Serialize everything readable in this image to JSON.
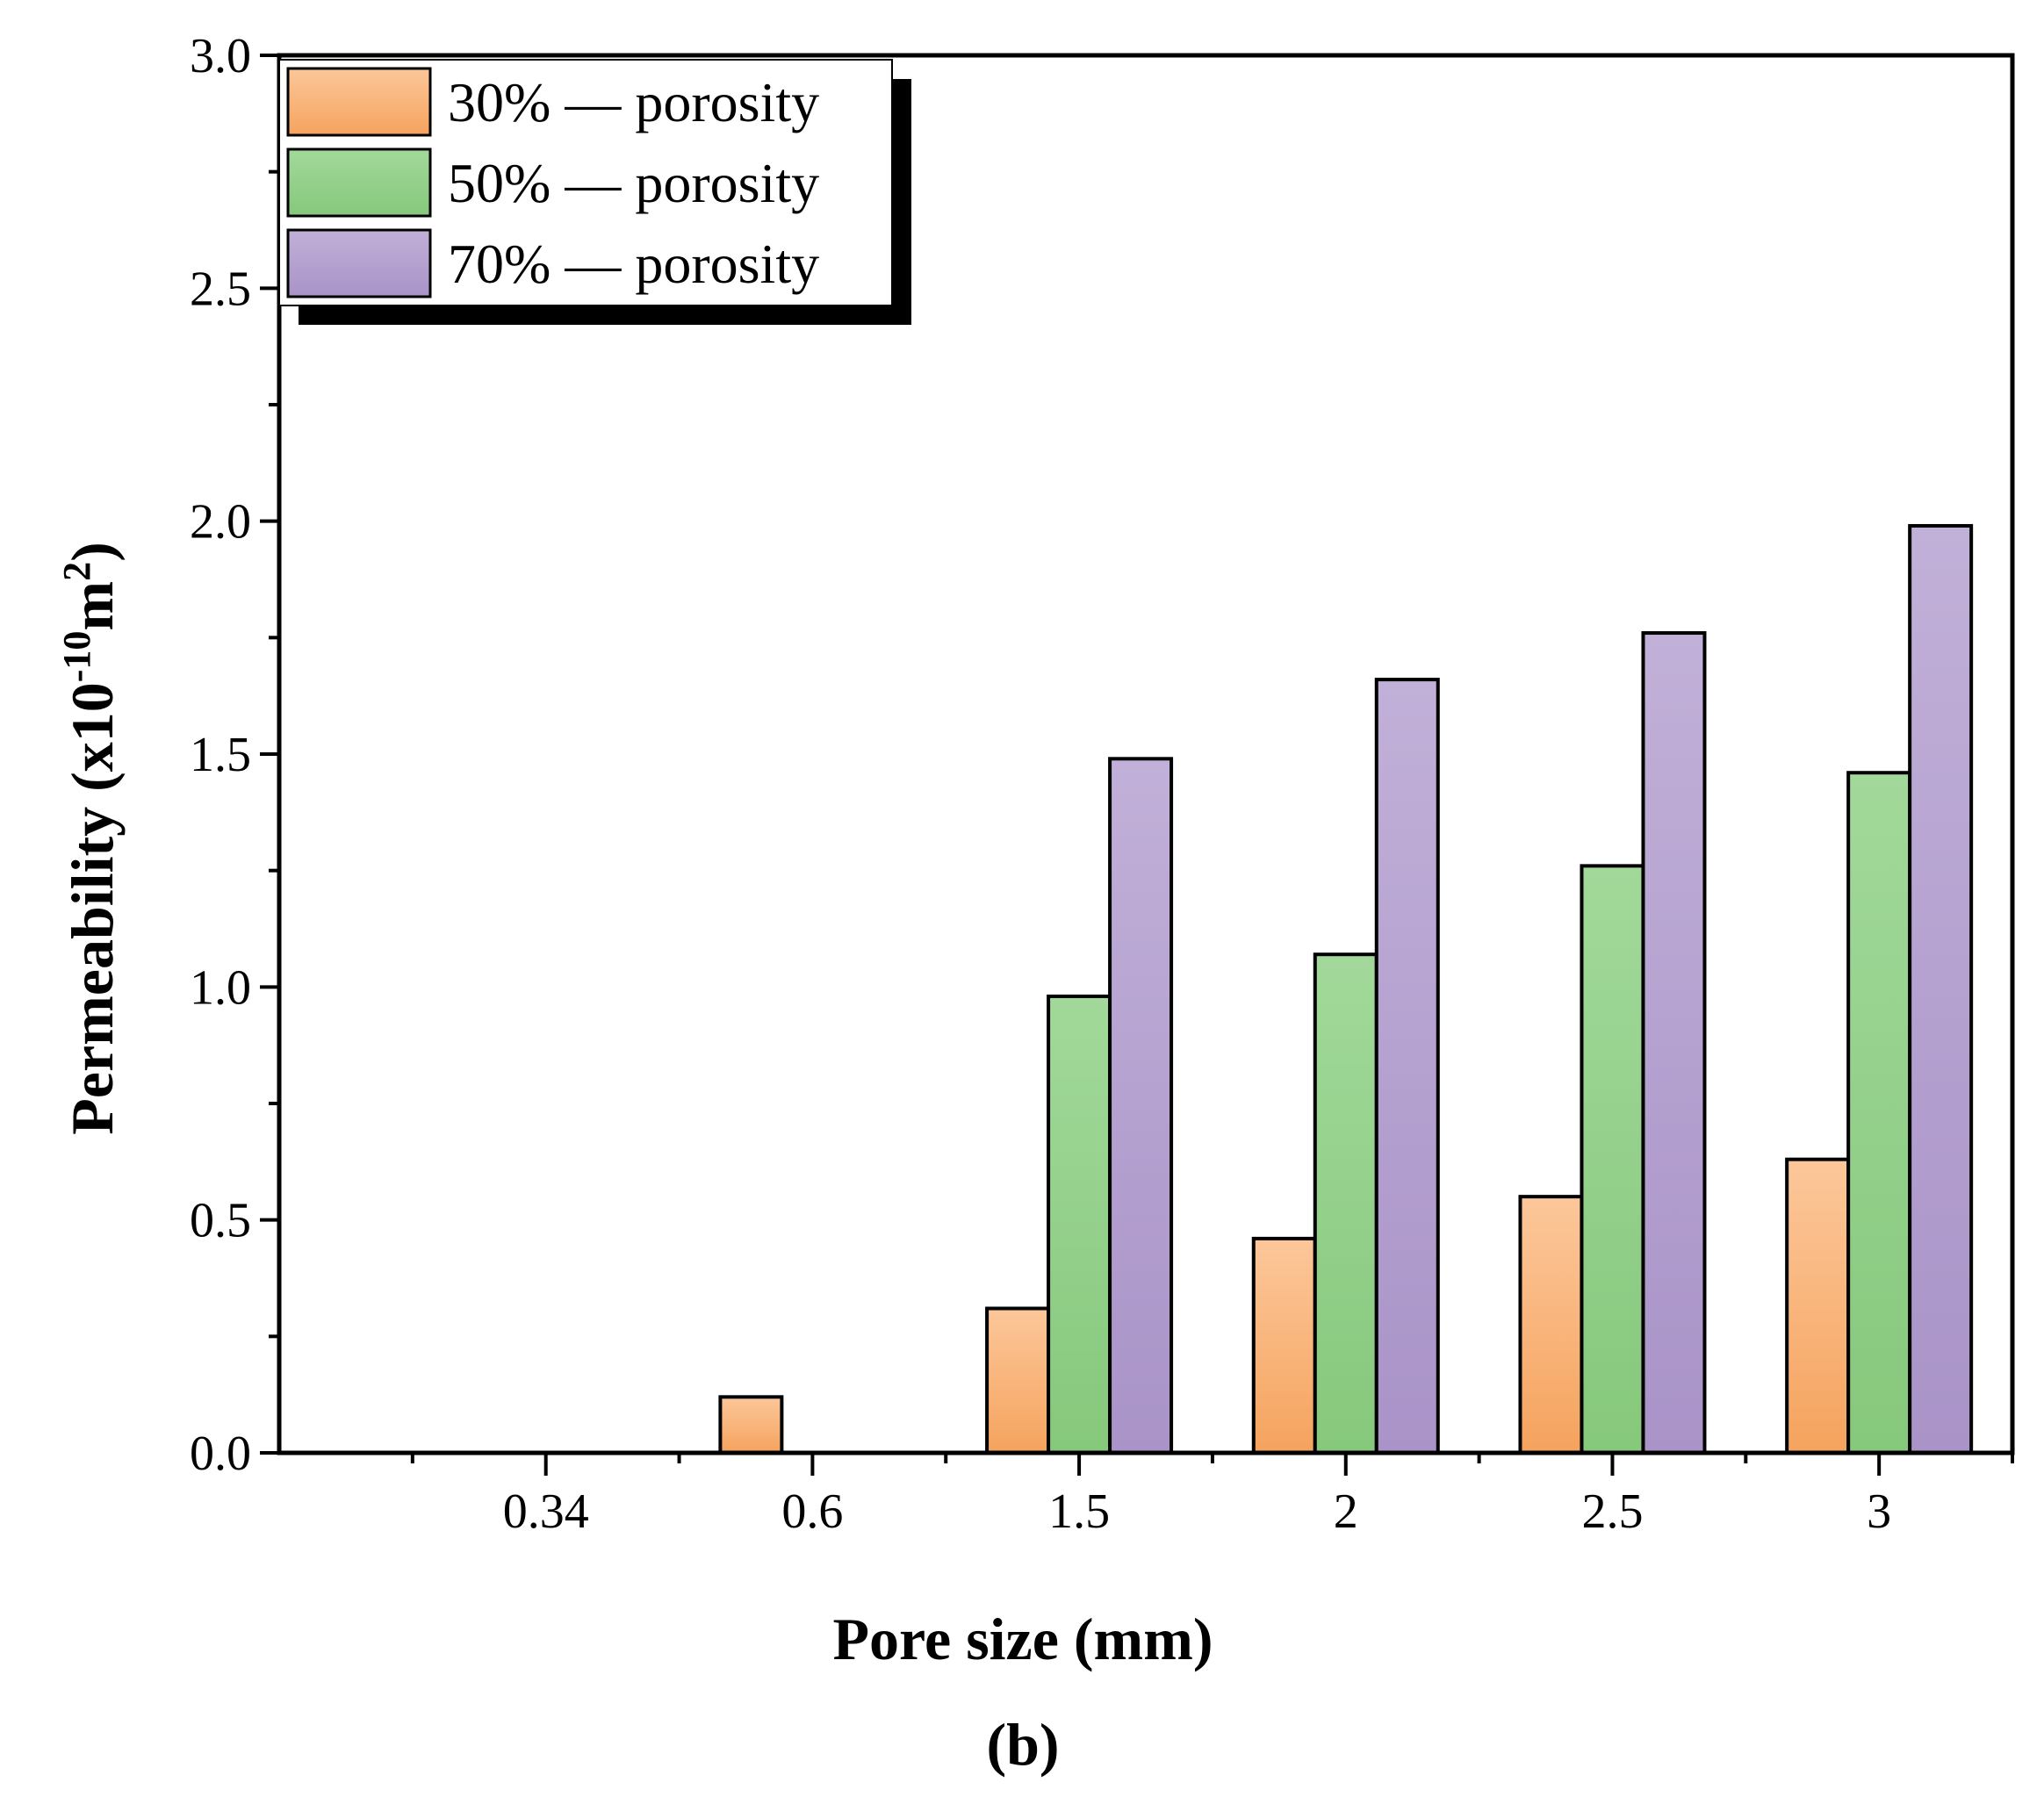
{
  "chart_data": {
    "type": "bar",
    "title": "",
    "xlabel": "Pore size (mm)",
    "ylabel_main": "Permeability (x10",
    "ylabel_exp": "-10",
    "ylabel_unit": "m",
    "ylabel_unit_exp": "2",
    "ylabel_close": ")",
    "ylim": [
      0,
      3.0
    ],
    "yticks": [
      "0.0",
      "0.5",
      "1.0",
      "1.5",
      "2.0",
      "2.5",
      "3.0"
    ],
    "categories": [
      "0.34",
      "0.6",
      "1.5",
      "2",
      "2.5",
      "3"
    ],
    "series": [
      {
        "name": "30% — porosity",
        "values": [
          0,
          0.12,
          0.31,
          0.46,
          0.55,
          0.63
        ],
        "color_top": "#fcc79a",
        "color_bottom": "#f5a35e"
      },
      {
        "name": "50% — porosity",
        "values": [
          0,
          0,
          0.98,
          1.07,
          1.26,
          1.46
        ],
        "color_top": "#a2d99a",
        "color_bottom": "#86c87c"
      },
      {
        "name": "70% — porosity",
        "values": [
          0,
          0,
          1.49,
          1.66,
          1.76,
          1.99
        ],
        "color_top": "#c1b0d8",
        "color_bottom": "#a993c8"
      }
    ],
    "legend_position": "top-left",
    "grid": false
  },
  "panel_label": "(b)"
}
